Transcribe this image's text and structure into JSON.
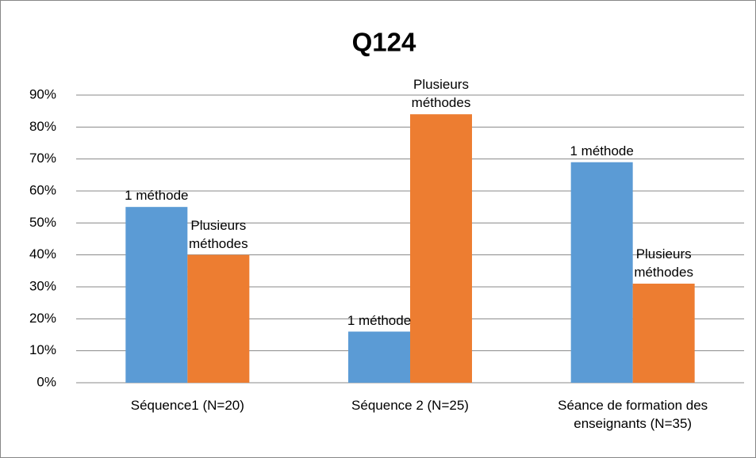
{
  "chart_data": {
    "type": "bar",
    "title": "Q124",
    "categories": [
      "Séquence1 (N=20)",
      "Séquence 2 (N=25)",
      "Séance de formation des enseignants (N=35)"
    ],
    "series": [
      {
        "name": "1 méthode",
        "color": "#5b9bd5",
        "values": [
          55,
          16,
          69
        ]
      },
      {
        "name": "Plusieurs méthodes",
        "color": "#ed7d31",
        "values": [
          40,
          84,
          31
        ]
      }
    ],
    "ylim": [
      0,
      90
    ],
    "yticks": [
      {
        "value": 0,
        "label": "0%"
      },
      {
        "value": 10,
        "label": "10%"
      },
      {
        "value": 20,
        "label": "20%"
      },
      {
        "value": 30,
        "label": "30%"
      },
      {
        "value": 40,
        "label": "40%"
      },
      {
        "value": 50,
        "label": "50%"
      },
      {
        "value": 60,
        "label": "60%"
      },
      {
        "value": 70,
        "label": "70%"
      },
      {
        "value": 80,
        "label": "80%"
      },
      {
        "value": 90,
        "label": "90%"
      }
    ],
    "grid": true
  }
}
